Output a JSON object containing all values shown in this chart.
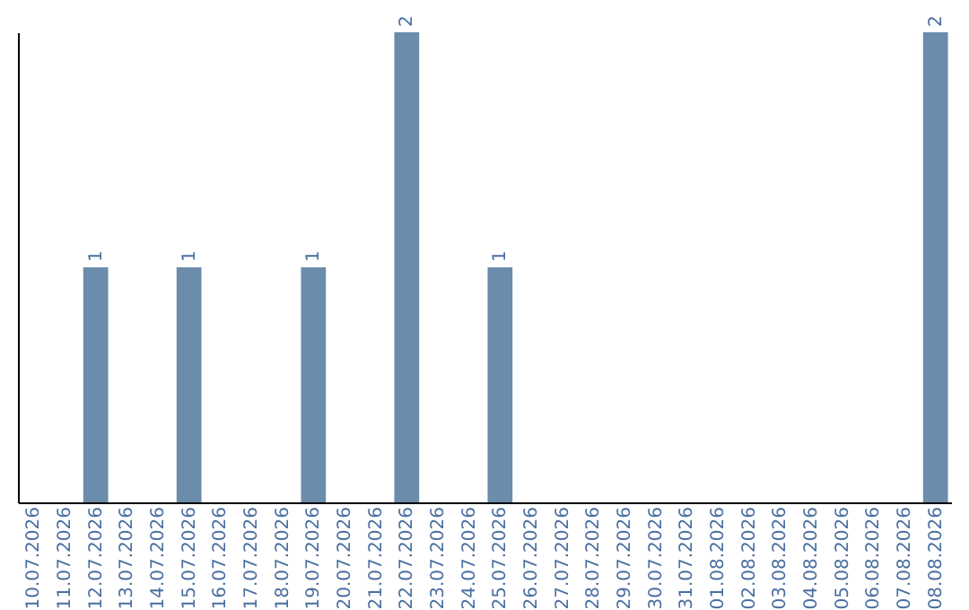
{
  "chart_data": {
    "type": "bar",
    "categories": [
      "10.07.2026",
      "11.07.2026",
      "12.07.2026",
      "13.07.2026",
      "14.07.2026",
      "15.07.2026",
      "16.07.2026",
      "17.07.2026",
      "18.07.2026",
      "19.07.2026",
      "20.07.2026",
      "21.07.2026",
      "22.07.2026",
      "23.07.2026",
      "24.07.2026",
      "25.07.2026",
      "26.07.2026",
      "27.07.2026",
      "28.07.2026",
      "29.07.2026",
      "30.07.2026",
      "31.07.2026",
      "01.08.2026",
      "02.08.2026",
      "03.08.2026",
      "04.08.2026",
      "05.08.2026",
      "06.08.2026",
      "07.08.2026",
      "08.08.2026"
    ],
    "values": [
      0,
      0,
      1,
      0,
      0,
      1,
      0,
      0,
      0,
      1,
      0,
      0,
      2,
      0,
      0,
      1,
      0,
      0,
      0,
      0,
      0,
      0,
      0,
      0,
      0,
      0,
      0,
      0,
      0,
      2
    ],
    "value_labels": [
      null,
      null,
      "1",
      null,
      null,
      "1",
      null,
      null,
      null,
      "1",
      null,
      null,
      "2",
      null,
      null,
      "1",
      null,
      null,
      null,
      null,
      null,
      null,
      null,
      null,
      null,
      null,
      null,
      null,
      null,
      "2"
    ],
    "color": "#6b8cab",
    "ylim": [
      0,
      2
    ],
    "tick_labels": "x",
    "grid": false
  }
}
